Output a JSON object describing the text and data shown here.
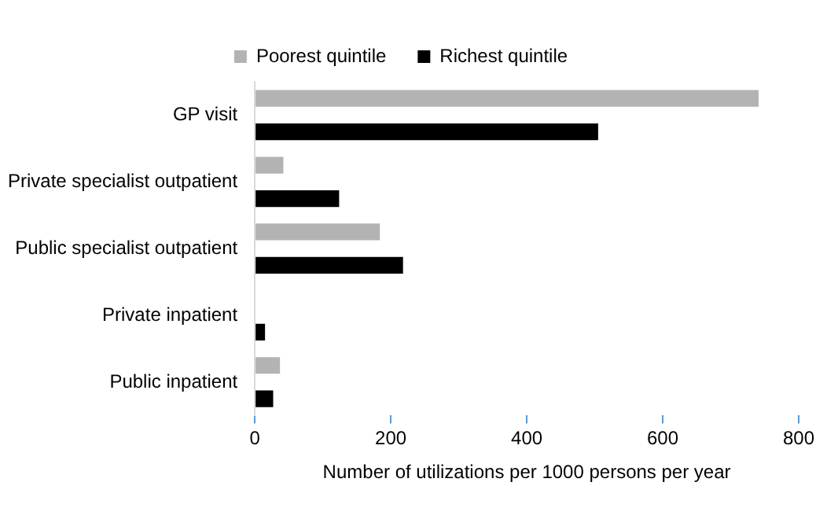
{
  "chart_data": {
    "type": "bar",
    "orientation": "horizontal",
    "xlabel": "Number of utilizations per 1000 persons per year",
    "categories": [
      "GP visit",
      "Private specialist outpatient",
      "Public specialist outpatient",
      "Private inpatient",
      "Public inpatient"
    ],
    "series": [
      {
        "name": "Poorest quintile",
        "color": "#b3b3b3",
        "values": [
          741,
          42,
          184,
          0,
          37
        ]
      },
      {
        "name": "Richest quintile",
        "color": "#000000",
        "values": [
          505,
          124,
          218,
          15,
          27
        ]
      }
    ],
    "xlim": [
      0,
      800
    ],
    "xticks": [
      0,
      200,
      400,
      600,
      800
    ],
    "grid": false,
    "legend": "top"
  }
}
